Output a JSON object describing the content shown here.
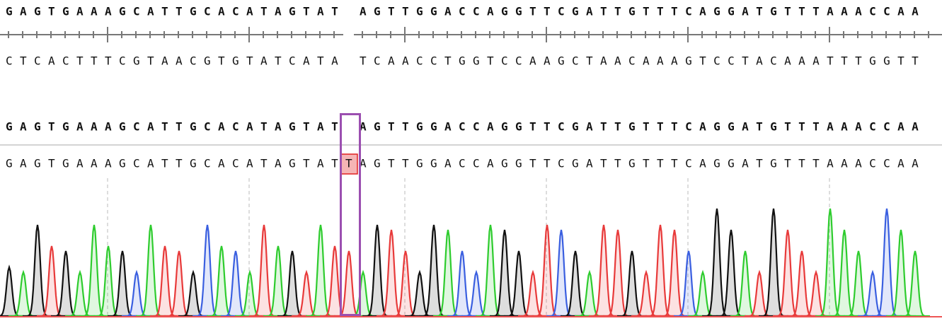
{
  "reference": {
    "left": "GAGTGAAAGCATTGCACATAGTAT",
    "right": "AGTTGGACCAGGTTCGATTGTTTCAGGATGTTTAAACCAA"
  },
  "complement": {
    "left": "CTCACTTTCGTAACGTGTATCATA",
    "right": "TCAACCTGGTCCAAGCTAACAAAGTCCTACAAATTTGGTT"
  },
  "alignment": {
    "left": "GAGTGAAAGCATTGCACATAGTAT",
    "right": "AGTTGGACCAGGTTCGATTGTTTCAGGATGTTTAAACCAA"
  },
  "read": {
    "left": "GAGTGAAAGCATTGCACATAGTAT",
    "insertion": "T",
    "right": "AGTTGGACCAGGTTCGATTGTTTCAGGATGTTTAAACCAA"
  }
}
